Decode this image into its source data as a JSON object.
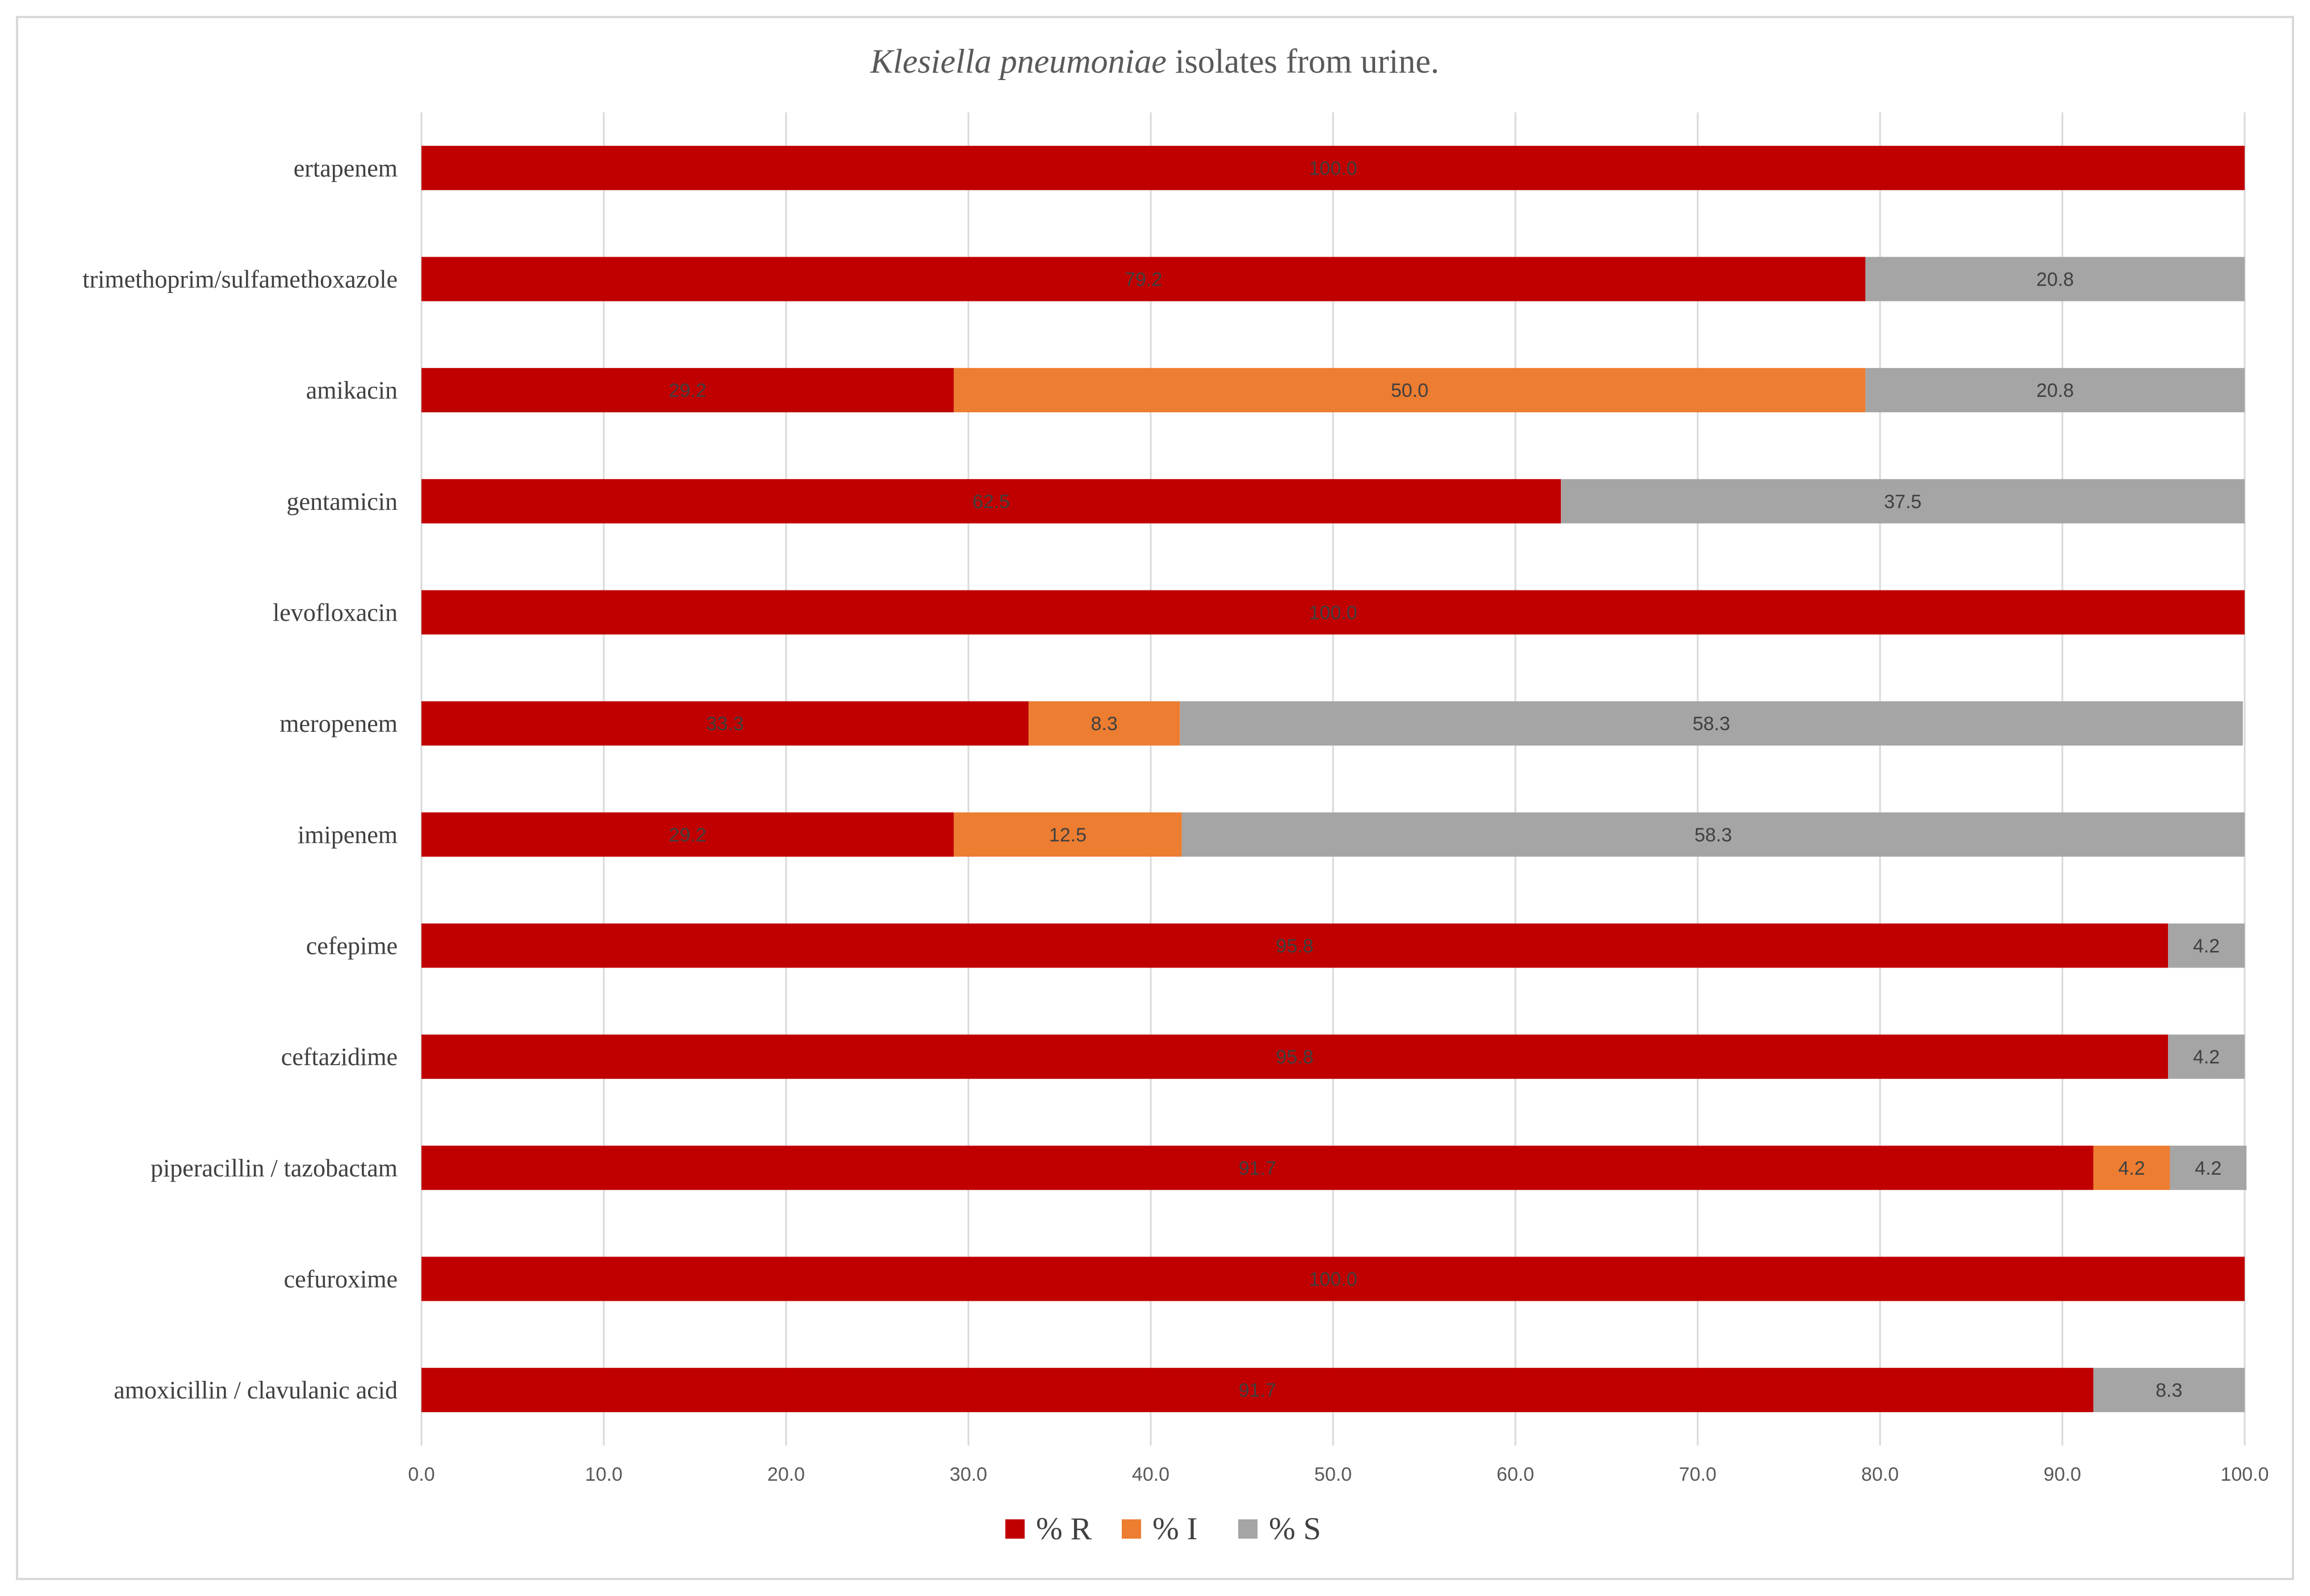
{
  "chart_data": {
    "type": "bar",
    "orientation": "horizontal",
    "stacked": true,
    "title": {
      "italic": "Klesiella pneumoniae",
      "rest": " isolates from urine."
    },
    "categories": [
      "ertapenem",
      "trimethoprim/sulfamethoxazole",
      "amikacin",
      "gentamicin",
      "levofloxacin",
      "meropenem",
      "imipenem",
      "cefepime",
      "ceftazidime",
      "piperacillin / tazobactam",
      "cefuroxime",
      "amoxicillin / clavulanic acid"
    ],
    "series": [
      {
        "name": "% R",
        "color": "#c00000",
        "values": [
          100.0,
          79.2,
          29.2,
          62.5,
          100.0,
          33.3,
          29.2,
          95.8,
          95.8,
          91.7,
          100.0,
          91.7
        ],
        "labels": [
          "100.0",
          "79.2",
          "29.2",
          "62.5",
          "100.0",
          "33.3",
          "29.2",
          "95.8",
          "95.8",
          "91.7",
          "100.0",
          "91.7"
        ]
      },
      {
        "name": "% I",
        "color": "#ed7d31",
        "values": [
          0,
          0,
          50.0,
          0,
          0,
          8.3,
          12.5,
          0,
          0,
          4.2,
          0,
          0
        ],
        "labels": [
          "",
          "",
          "50.0",
          "",
          "",
          "8.3",
          "12.5",
          "",
          "",
          "4.2",
          "",
          ""
        ]
      },
      {
        "name": "% S",
        "color": "#a5a5a5",
        "values": [
          0,
          20.8,
          20.8,
          37.5,
          0,
          58.3,
          58.3,
          4.2,
          4.2,
          4.2,
          0,
          8.3
        ],
        "labels": [
          "",
          "20.8",
          "20.8",
          "37.5",
          "",
          "58.3",
          "58.3",
          "4.2",
          "4.2",
          "4.2",
          "",
          "8.3"
        ]
      }
    ],
    "xlim": [
      0,
      100
    ],
    "xticks": [
      "0.0",
      "10.0",
      "20.0",
      "30.0",
      "40.0",
      "50.0",
      "60.0",
      "70.0",
      "80.0",
      "90.0",
      "100.0"
    ],
    "xlabel": "",
    "ylabel": "",
    "grid": true,
    "legend_position": "bottom"
  }
}
